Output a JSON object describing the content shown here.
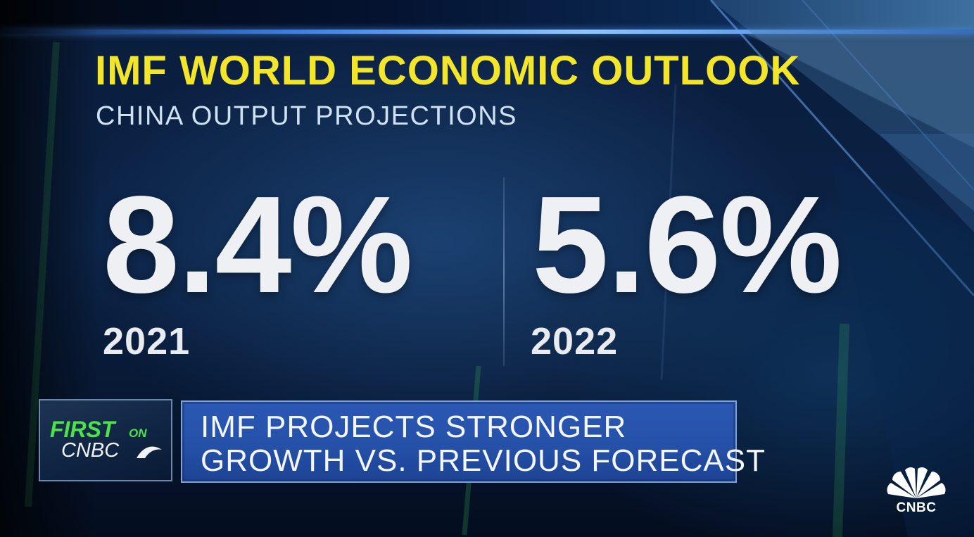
{
  "graphic": {
    "title": "IMF WORLD ECONOMIC OUTLOOK",
    "subtitle": "CHINA OUTPUT PROJECTIONS",
    "stats": [
      {
        "value": "8.4%",
        "year": "2021"
      },
      {
        "value": "5.6%",
        "year": "2022"
      }
    ]
  },
  "lower_third": {
    "badge_first": "FIRST",
    "badge_on": "ON",
    "badge_network": "CNBC",
    "headline_line1": "IMF PROJECTS STRONGER",
    "headline_line2": "GROWTH VS. PREVIOUS FORECAST"
  },
  "logo": {
    "text": "CNBC",
    "icon": "peacock-icon"
  },
  "colors": {
    "title": "#f3e52a",
    "badge_green": "#4ee24a",
    "headline_blue": "#2551a8"
  }
}
